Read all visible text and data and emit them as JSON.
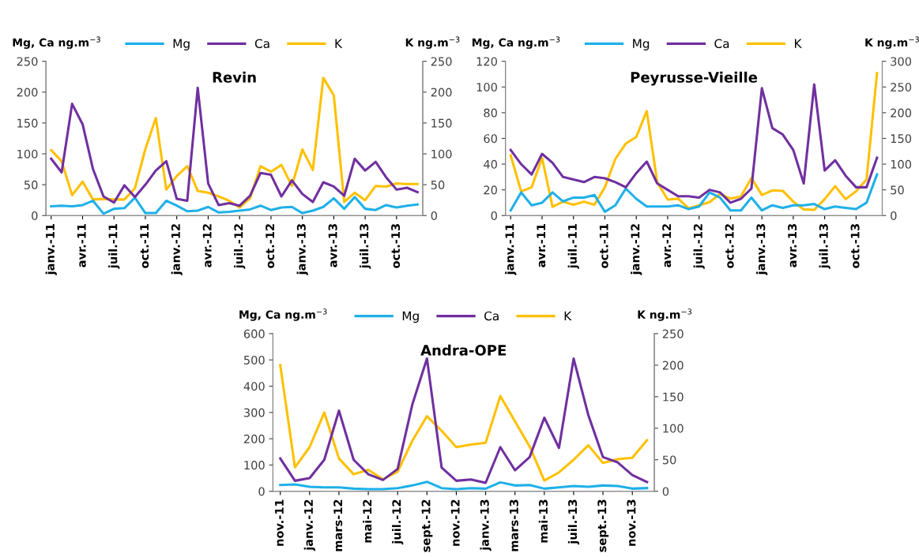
{
  "chart_data": [
    {
      "type": "line",
      "title": "Revin",
      "ylabel": "Mg, Ca ng.m$^{−3}$",
      "y2label": "K ng.m$^{−3}$",
      "legend": "top",
      "grid": false,
      "categories": [
        "janv.-11",
        null,
        null,
        "avr.-11",
        null,
        null,
        "juil.-11",
        null,
        null,
        "oct.-11",
        null,
        null,
        "janv.-12",
        null,
        null,
        "avr.-12",
        null,
        null,
        "juil.-12",
        null,
        null,
        "oct.-12",
        null,
        null,
        "janv.-13",
        null,
        null,
        "avr.-13",
        null,
        null,
        "juil.-13",
        null,
        null,
        "oct.-13",
        null,
        null
      ],
      "ylim": [
        0,
        250
      ],
      "yticks": [
        0,
        50,
        100,
        150,
        200,
        250
      ],
      "y2lim": [
        0,
        250
      ],
      "y2ticks": [
        0,
        50,
        100,
        150,
        200,
        250
      ],
      "series": [
        {
          "name": "Mg",
          "color": "#1fb0e8",
          "values": [
            15,
            16,
            15,
            17,
            24,
            3,
            11,
            12,
            29,
            4,
            4,
            24,
            16,
            7,
            8,
            14,
            5,
            6,
            8,
            10,
            16,
            9,
            13,
            14,
            4,
            8,
            14,
            28,
            11,
            30,
            11,
            9,
            17,
            13,
            16,
            18
          ]
        },
        {
          "name": "Ca",
          "color": "#7030a0",
          "values": [
            92,
            70,
            181,
            148,
            75,
            31,
            21,
            49,
            30,
            50,
            73,
            88,
            27,
            24,
            207,
            52,
            17,
            20,
            16,
            32,
            69,
            66,
            31,
            57,
            35,
            22,
            54,
            47,
            32,
            92,
            73,
            87,
            62,
            42,
            45,
            38
          ]
        },
        {
          "name": "K",
          "color": "#ffc000",
          "axis": "y2",
          "values": [
            106,
            88,
            33,
            55,
            26,
            27,
            26,
            26,
            44,
            108,
            158,
            42,
            64,
            80,
            40,
            37,
            31,
            24,
            13,
            28,
            80,
            71,
            82,
            48,
            107,
            74,
            223,
            195,
            22,
            37,
            25,
            48,
            47,
            52,
            51,
            51
          ]
        }
      ]
    },
    {
      "type": "line",
      "title": "Peyrusse-Vieille",
      "ylabel": "Mg, Ca ng.m$^{−3}$",
      "y2label": "K ng.m$^{−3}$",
      "legend": "top",
      "grid": false,
      "categories": [
        "janv.-11",
        null,
        null,
        "avr.-11",
        null,
        null,
        "juil.-11",
        null,
        null,
        "oct.-11",
        null,
        null,
        "janv.-12",
        null,
        null,
        "avr.-12",
        null,
        null,
        "juil.-12",
        null,
        null,
        "oct.-12",
        null,
        null,
        "janv.-13",
        null,
        null,
        "avr.-13",
        null,
        null,
        "juil.-13",
        null,
        null,
        "oct.-13",
        null,
        null
      ],
      "ylim": [
        0,
        120
      ],
      "yticks": [
        0,
        20,
        40,
        60,
        80,
        100,
        120
      ],
      "y2lim": [
        0,
        300
      ],
      "y2ticks": [
        0,
        50,
        100,
        150,
        200,
        250,
        300
      ],
      "series": [
        {
          "name": "Mg",
          "color": "#1fb0e8",
          "values": [
            4,
            18,
            8,
            10,
            18,
            11,
            14,
            14,
            16,
            3,
            8,
            21,
            13,
            7,
            7,
            7,
            8,
            5,
            7,
            18,
            14,
            4,
            4,
            14,
            4,
            8,
            6,
            8,
            8,
            9,
            5,
            7,
            6,
            5,
            10,
            32
          ]
        },
        {
          "name": "Ca",
          "color": "#7030a0",
          "values": [
            51,
            40,
            32,
            48,
            41,
            30,
            28,
            26,
            30,
            29,
            26,
            22,
            33,
            42,
            25,
            20,
            15,
            15,
            14,
            20,
            18,
            10,
            13,
            21,
            99,
            68,
            63,
            51,
            25,
            102,
            35,
            43,
            31,
            22,
            22,
            45
          ]
        },
        {
          "name": "K",
          "color": "#ffc000",
          "axis": "y2",
          "values": [
            117,
            47,
            55,
            112,
            17,
            27,
            21,
            27,
            21,
            55,
            110,
            140,
            153,
            203,
            65,
            31,
            33,
            14,
            20,
            26,
            42,
            33,
            37,
            73,
            40,
            49,
            48,
            27,
            12,
            11,
            32,
            57,
            32,
            47,
            70,
            277
          ]
        }
      ]
    },
    {
      "type": "line",
      "title": "Andra-OPE",
      "ylabel": "Mg, Ca ng.m$^{−3}$",
      "y2label": "K ng.m$^{−3}$",
      "legend": "top",
      "grid": false,
      "categories": [
        "nov.-11",
        null,
        "janv.-12",
        null,
        "mars-12",
        null,
        "mai-12",
        null,
        "juil.-12",
        null,
        "sept.-12",
        null,
        "nov.-12",
        null,
        "janv.-13",
        null,
        "mars-13",
        null,
        "mai-13",
        null,
        "juil.-13",
        null,
        "sept.-13",
        null,
        "nov.-13",
        null
      ],
      "ylim": [
        0,
        600
      ],
      "yticks": [
        0,
        100,
        200,
        300,
        400,
        500,
        600
      ],
      "y2lim": [
        0,
        250
      ],
      "y2ticks": [
        0,
        50,
        100,
        150,
        200,
        250
      ],
      "series": [
        {
          "name": "Mg",
          "color": "#1fb0e8",
          "values": [
            24,
            26,
            17,
            15,
            15,
            10,
            8,
            8,
            12,
            22,
            36,
            12,
            8,
            12,
            10,
            34,
            22,
            24,
            10,
            15,
            20,
            17,
            22,
            20,
            10,
            12
          ]
        },
        {
          "name": "Ca",
          "color": "#7030a0",
          "values": [
            125,
            40,
            50,
            120,
            307,
            120,
            65,
            43,
            85,
            330,
            505,
            90,
            40,
            45,
            32,
            168,
            80,
            130,
            280,
            165,
            505,
            290,
            130,
            110,
            62,
            35
          ]
        },
        {
          "name": "K",
          "color": "#ffc000",
          "axis": "y2",
          "values": [
            200,
            38,
            70,
            125,
            52,
            27,
            34,
            19,
            31,
            80,
            119,
            96,
            70,
            74,
            77,
            151,
            111,
            71,
            17,
            30,
            50,
            73,
            45,
            51,
            53,
            81
          ]
        }
      ]
    }
  ]
}
